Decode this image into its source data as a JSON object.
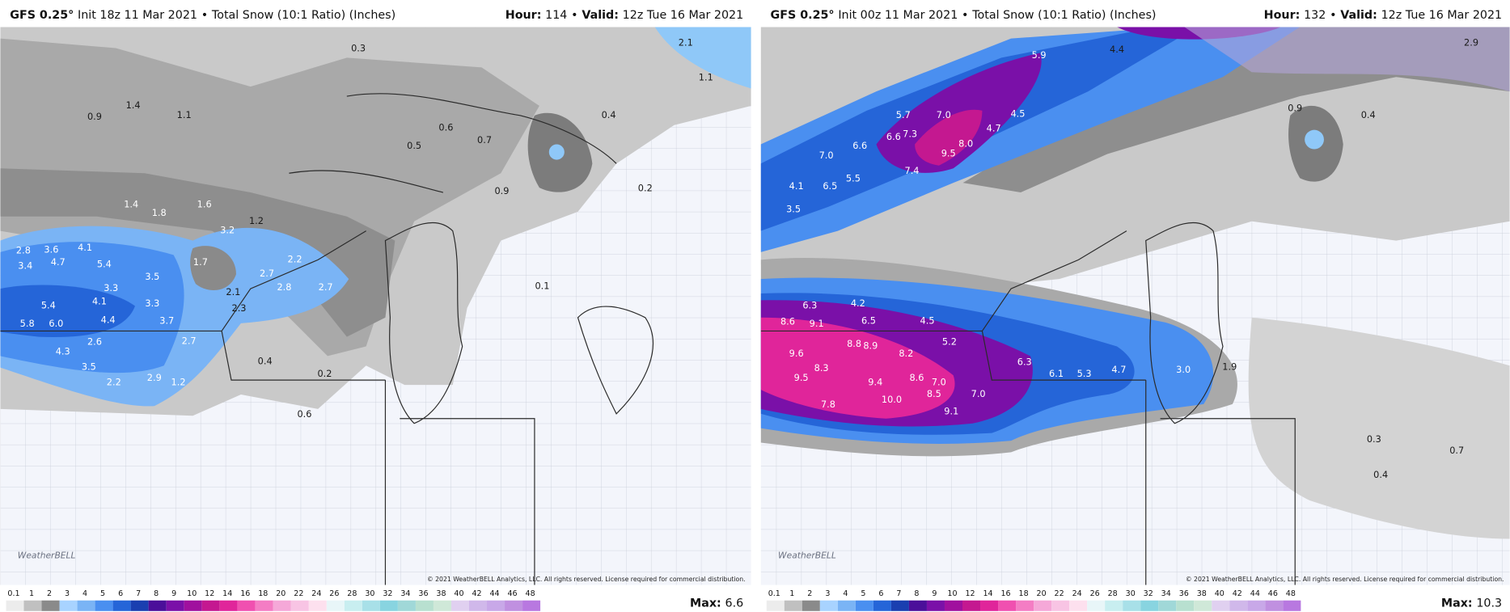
{
  "separator": "•",
  "logo": "WeatherBELL",
  "copyright": "© 2021 WeatherBELL Analytics, LLC. All rights reserved. License required for commercial distribution.",
  "max_label": "Max:",
  "colorbar": {
    "ticks": [
      0.1,
      1,
      2,
      3,
      4,
      5,
      6,
      7,
      8,
      9,
      10,
      12,
      14,
      16,
      18,
      20,
      22,
      24,
      26,
      28,
      30,
      32,
      34,
      36,
      38,
      40,
      42,
      44,
      46,
      48
    ],
    "colors": [
      "#ececec",
      "#c0c0c0",
      "#8a8a8a",
      "#a8d3ff",
      "#7ab4f5",
      "#4a8ff0",
      "#2565d8",
      "#1a3fb0",
      "#4b0f9a",
      "#7a10a8",
      "#a0109e",
      "#c41890",
      "#e0259a",
      "#f050b0",
      "#f47dc4",
      "#f5a8d8",
      "#f8c4e4",
      "#fde0ee",
      "#e8f6f8",
      "#c8eef0",
      "#a8e0e8",
      "#88d4e0",
      "#a0d8d8",
      "#b8e0d0",
      "#cfe8d8",
      "#e0d0f0",
      "#d0b8ea",
      "#c8a8e8",
      "#c090e0",
      "#b878e0"
    ]
  },
  "panels": [
    {
      "model": "GFS 0.25°",
      "init": "Init 18z 11 Mar 2021",
      "product": "Total Snow (10:1 Ratio) (Inches)",
      "hour_label": "Hour:",
      "hour": "114",
      "valid_label": "Valid:",
      "valid": "12z Tue 16 Mar 2021",
      "max": "6.6",
      "labels": [
        "5.8",
        "6.0",
        "5.4",
        "4.7",
        "3.4",
        "3.6",
        "2.8",
        "4.1",
        "5.4",
        "3.3",
        "4.1",
        "4.4",
        "3.5",
        "3.3",
        "3.7",
        "2.7",
        "2.6",
        "4.3",
        "3.5",
        "2.2",
        "2.9",
        "1.2",
        "3.2",
        "1.7",
        "2.1",
        "2.3",
        "2.7",
        "2.8",
        "2.2",
        "2.7",
        "1.6",
        "1.8",
        "1.4",
        "0.9",
        "1.4",
        "1.1",
        "0.3",
        "0.6",
        "0.7",
        "0.4",
        "1.1",
        "2.1",
        "0.9",
        "0.2",
        "0.1",
        "0.6",
        "0.2",
        "0.4",
        "1.2",
        "0.5"
      ]
    },
    {
      "model": "GFS 0.25°",
      "init": "Init 00z 11 Mar 2021",
      "product": "Total Snow (10:1 Ratio) (Inches)",
      "hour_label": "Hour:",
      "hour": "132",
      "valid_label": "Valid:",
      "valid": "12z Tue 16 Mar 2021",
      "max": "10.3",
      "labels": [
        "5.9",
        "7.0",
        "7.3",
        "6.6",
        "8.0",
        "9.5",
        "7.4",
        "5.7",
        "4.5",
        "4.7",
        "6.6",
        "7.0",
        "6.5",
        "5.5",
        "4.1",
        "3.5",
        "4.4",
        "2.9",
        "0.4",
        "8.6",
        "9.1",
        "6.3",
        "4.2",
        "6.5",
        "4.5",
        "8.8",
        "8.9",
        "9.6",
        "8.2",
        "8.3",
        "9.5",
        "9.4",
        "8.6",
        "7.0",
        "7.8",
        "10.0",
        "8.5",
        "7.0",
        "9.1",
        "5.2",
        "6.3",
        "6.1",
        "5.3",
        "4.7",
        "3.0",
        "1.9",
        "0.9",
        "0.3",
        "0.4",
        "0.7"
      ]
    }
  ]
}
